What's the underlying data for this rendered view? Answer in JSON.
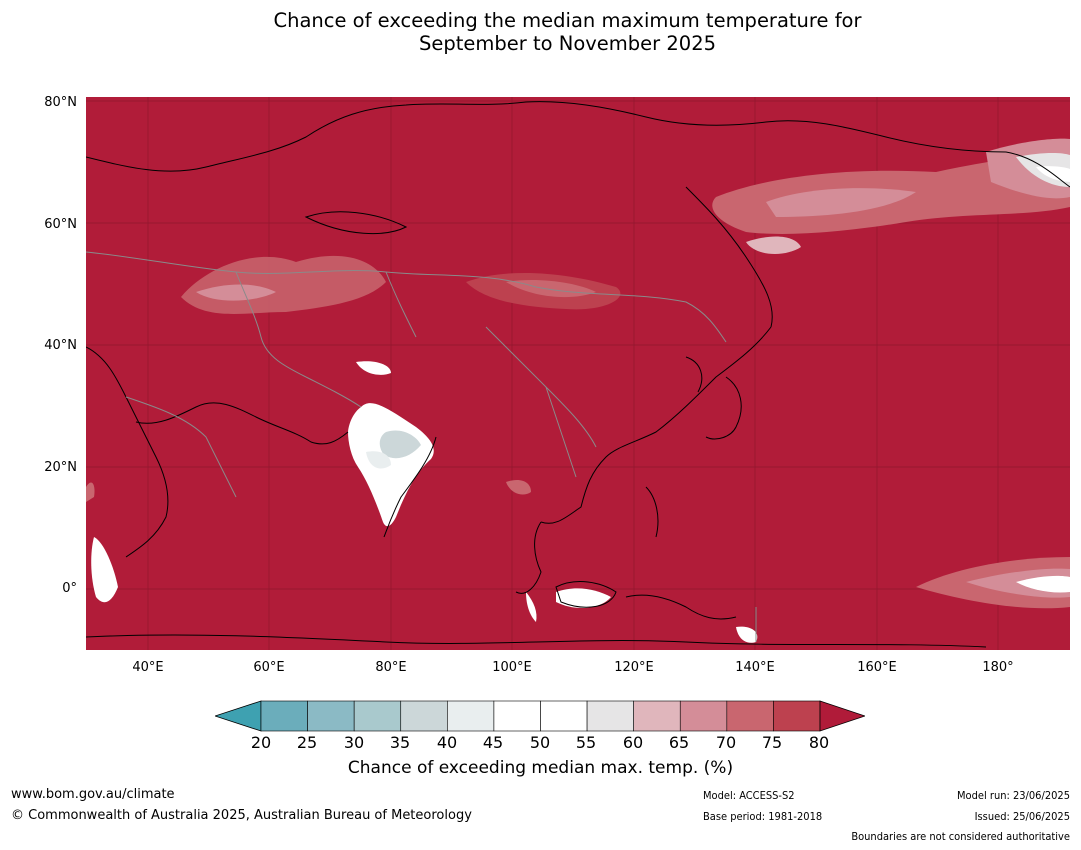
{
  "header": {
    "title_line1": "Chance of exceeding the median maximum temperature for",
    "title_line2": "September to November 2025"
  },
  "map": {
    "ocean_color": "#b11c39",
    "lat_labels": [
      "80°N",
      "60°N",
      "40°N",
      "20°N",
      "0°"
    ],
    "lon_labels": [
      "40°E",
      "60°E",
      "80°E",
      "100°E",
      "120°E",
      "140°E",
      "160°E",
      "180°"
    ]
  },
  "legend": {
    "ticks": [
      "20",
      "25",
      "30",
      "35",
      "40",
      "45",
      "50",
      "55",
      "60",
      "65",
      "70",
      "75",
      "80"
    ],
    "colors": [
      "#3ea1b1",
      "#6badbb",
      "#8bbac5",
      "#a9c9cd",
      "#ccd7d9",
      "#e9eeef",
      "#ffffff",
      "#ffffff",
      "#e6e5e6",
      "#e0b6bc",
      "#d48d98",
      "#c9666f",
      "#bd414f",
      "#b01b39"
    ],
    "title": "Chance of exceeding median max. temp. (%)"
  },
  "footer": {
    "url": "www.bom.gov.au/climate",
    "copyright": "© Commonwealth of Australia 2025, Australian Bureau of Meteorology",
    "model": "Model: ACCESS-S2",
    "base_period": "Base period: 1981-2018",
    "model_run": "Model run: 23/06/2025",
    "issued": "Issued: 25/06/2025",
    "disclaimer": "Boundaries are not considered authoritative"
  }
}
